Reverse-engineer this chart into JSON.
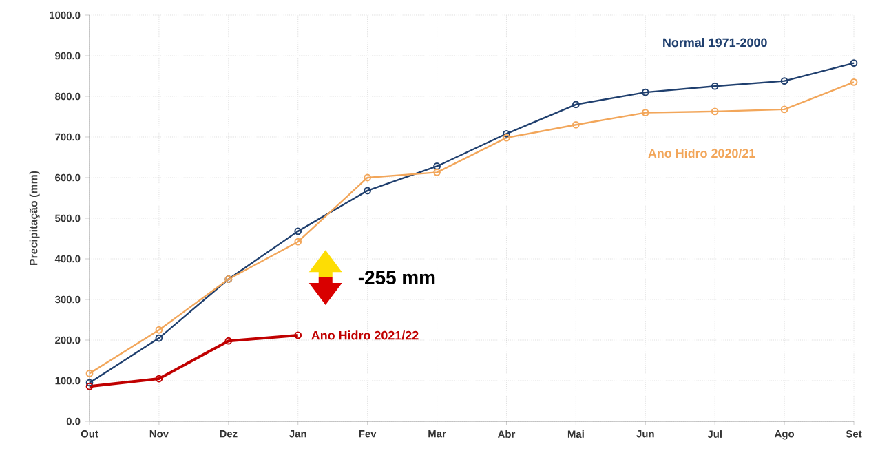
{
  "chart_data": {
    "type": "line",
    "ylabel": "Precipitação (mm)",
    "categories": [
      "Out",
      "Nov",
      "Dez",
      "Jan",
      "Fev",
      "Mar",
      "Abr",
      "Mai",
      "Jun",
      "Jul",
      "Ago",
      "Set"
    ],
    "series": [
      {
        "name": "Normal 1971-2000",
        "color": "#1f3f6e",
        "values": [
          95,
          205,
          350,
          468,
          568,
          628,
          708,
          780,
          810,
          825,
          838,
          882
        ]
      },
      {
        "name": "Ano Hidro 2020/21",
        "color": "#f2a65a",
        "values": [
          118,
          225,
          350,
          442,
          600,
          613,
          698,
          730,
          760,
          763,
          768,
          835
        ]
      },
      {
        "name": "Ano Hidro 2021/22",
        "color": "#c00000",
        "values": [
          86,
          105,
          198,
          212,
          null,
          null,
          null,
          null,
          null,
          null,
          null,
          null
        ]
      }
    ],
    "ylim": [
      0,
      1000
    ],
    "yticks": [
      {
        "value": 0,
        "label": "0.0"
      },
      {
        "value": 100,
        "label": "100.0"
      },
      {
        "value": 200,
        "label": "200.0"
      },
      {
        "value": 300,
        "label": "300.0"
      },
      {
        "value": 400,
        "label": "400.0"
      },
      {
        "value": 500,
        "label": "500.0"
      },
      {
        "value": 600,
        "label": "600.0"
      },
      {
        "value": 700,
        "label": "700.0"
      },
      {
        "value": 800,
        "label": "800.0"
      },
      {
        "value": 900,
        "label": "900.0"
      },
      {
        "value": 1000,
        "label": "1000.0"
      }
    ],
    "annotations": [
      "-255 mm"
    ],
    "grid": true,
    "marker": "circle",
    "line_style": "solid"
  }
}
